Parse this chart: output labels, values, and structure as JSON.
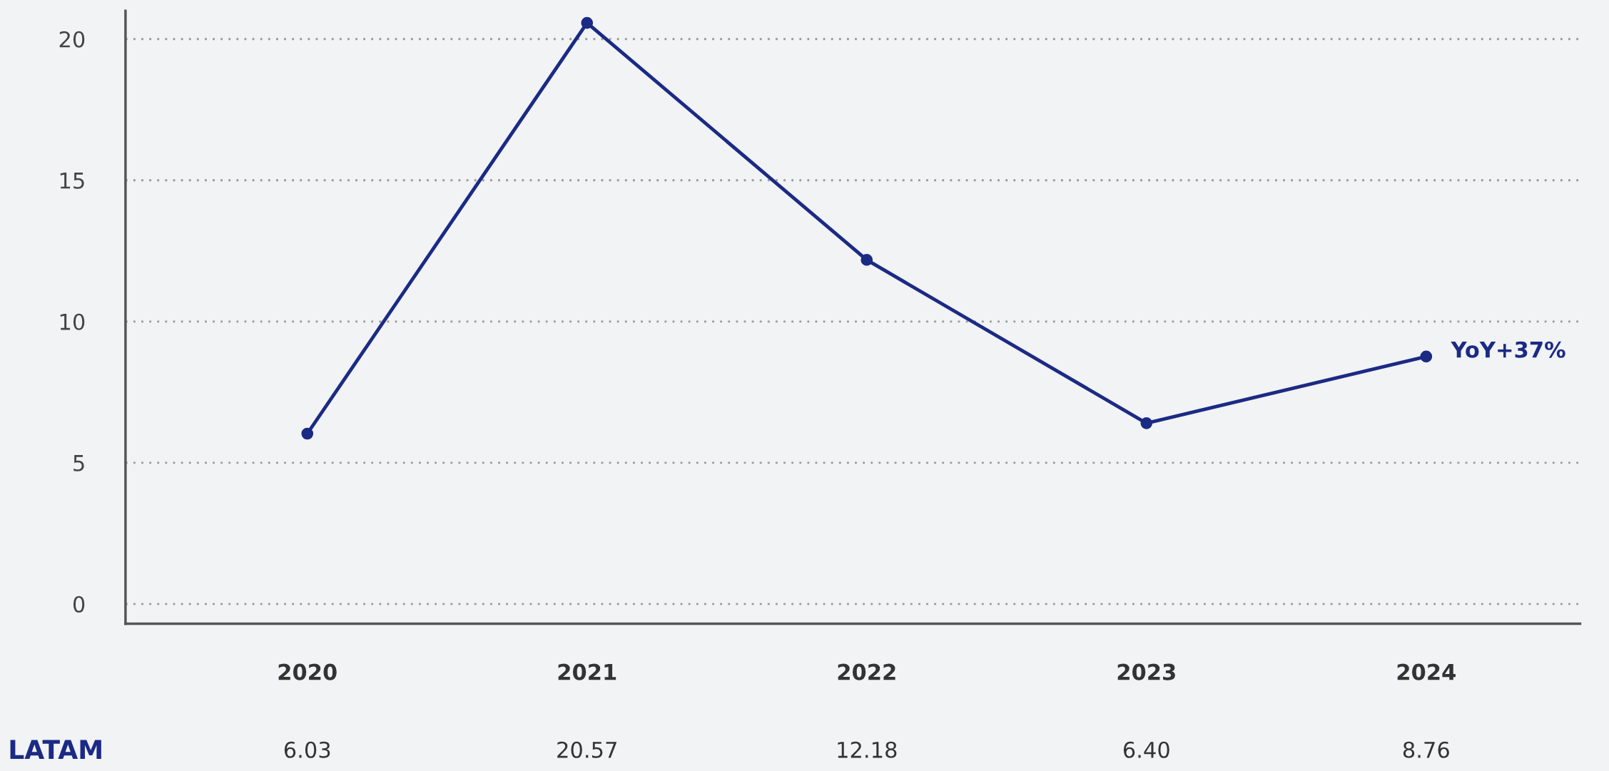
{
  "chart_data": {
    "type": "line",
    "categories": [
      "2020",
      "2021",
      "2022",
      "2023",
      "2024"
    ],
    "series": [
      {
        "name": "LATAM",
        "color": "#1b2a84",
        "values": [
          6.03,
          20.57,
          12.18,
          6.4,
          8.76
        ],
        "value_labels": [
          "6.03",
          "20.57",
          "12.18",
          "6.40",
          "8.76"
        ]
      }
    ],
    "ylim": [
      -0.7,
      21
    ],
    "yticks": [
      0,
      5,
      10,
      15,
      20
    ],
    "grid": "y",
    "marker": "circle",
    "line_style": "solid",
    "legend": false,
    "annotations": [
      {
        "text": "YoY+37%",
        "x": "2024",
        "y": 8.76
      }
    ]
  }
}
